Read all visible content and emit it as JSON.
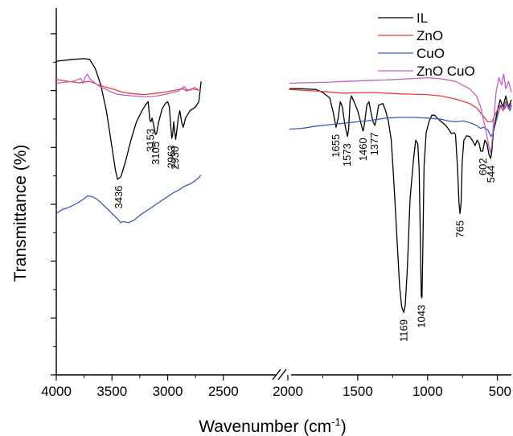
{
  "chart_data": {
    "type": "line",
    "title": "",
    "xlabel": "Wavenumber (cm",
    "xlabel_sup": "-1",
    "xlabel_close": ")",
    "ylabel": "Transmittance (%)",
    "x_axis": {
      "broken": true,
      "left_range": [
        4000,
        2000
      ],
      "right_range": [
        2000,
        400
      ],
      "left_ticks": [
        "4000",
        "3500",
        "3000",
        "2500"
      ],
      "right_ticks": [
        "2000",
        "1500",
        "1000",
        "500"
      ]
    },
    "y_ticks_labeled": false,
    "grid": false,
    "legend_position": "top-right",
    "series": [
      {
        "name": "IL",
        "color": "#000000",
        "left": [
          [
            4000,
            0.855
          ],
          [
            3850,
            0.86
          ],
          [
            3750,
            0.862
          ],
          [
            3700,
            0.86
          ],
          [
            3650,
            0.835
          ],
          [
            3600,
            0.79
          ],
          [
            3550,
            0.72
          ],
          [
            3500,
            0.62
          ],
          [
            3470,
            0.56
          ],
          [
            3450,
            0.533
          ],
          [
            3420,
            0.54
          ],
          [
            3380,
            0.58
          ],
          [
            3330,
            0.64
          ],
          [
            3280,
            0.69
          ],
          [
            3230,
            0.72
          ],
          [
            3200,
            0.735
          ],
          [
            3175,
            0.745
          ],
          [
            3160,
            0.695
          ],
          [
            3150,
            0.69
          ],
          [
            3140,
            0.7
          ],
          [
            3125,
            0.68
          ],
          [
            3110,
            0.655
          ],
          [
            3100,
            0.658
          ],
          [
            3080,
            0.69
          ],
          [
            3050,
            0.725
          ],
          [
            3020,
            0.74
          ],
          [
            3000,
            0.745
          ],
          [
            2985,
            0.73
          ],
          [
            2970,
            0.67
          ],
          [
            2963,
            0.645
          ],
          [
            2955,
            0.655
          ],
          [
            2945,
            0.69
          ],
          [
            2935,
            0.66
          ],
          [
            2928,
            0.642
          ],
          [
            2920,
            0.66
          ],
          [
            2905,
            0.7
          ],
          [
            2890,
            0.72
          ],
          [
            2875,
            0.69
          ],
          [
            2860,
            0.675
          ],
          [
            2840,
            0.7
          ],
          [
            2800,
            0.72
          ],
          [
            2750,
            0.73
          ],
          [
            2720,
            0.745
          ],
          [
            2700,
            0.8
          ]
        ],
        "right": [
          [
            1990,
            0.78
          ],
          [
            1900,
            0.78
          ],
          [
            1800,
            0.778
          ],
          [
            1750,
            0.77
          ],
          [
            1700,
            0.755
          ],
          [
            1675,
            0.715
          ],
          [
            1655,
            0.675
          ],
          [
            1640,
            0.7
          ],
          [
            1625,
            0.745
          ],
          [
            1610,
            0.73
          ],
          [
            1595,
            0.69
          ],
          [
            1580,
            0.66
          ],
          [
            1573,
            0.65
          ],
          [
            1565,
            0.67
          ],
          [
            1555,
            0.745
          ],
          [
            1545,
            0.76
          ],
          [
            1530,
            0.748
          ],
          [
            1500,
            0.72
          ],
          [
            1480,
            0.69
          ],
          [
            1465,
            0.668
          ],
          [
            1460,
            0.665
          ],
          [
            1450,
            0.69
          ],
          [
            1435,
            0.735
          ],
          [
            1420,
            0.745
          ],
          [
            1405,
            0.715
          ],
          [
            1390,
            0.69
          ],
          [
            1377,
            0.68
          ],
          [
            1365,
            0.7
          ],
          [
            1350,
            0.735
          ],
          [
            1320,
            0.74
          ],
          [
            1300,
            0.72
          ],
          [
            1280,
            0.69
          ],
          [
            1260,
            0.64
          ],
          [
            1240,
            0.52
          ],
          [
            1220,
            0.38
          ],
          [
            1200,
            0.24
          ],
          [
            1185,
            0.185
          ],
          [
            1170,
            0.17
          ],
          [
            1160,
            0.19
          ],
          [
            1145,
            0.29
          ],
          [
            1125,
            0.48
          ],
          [
            1100,
            0.59
          ],
          [
            1085,
            0.64
          ],
          [
            1070,
            0.63
          ],
          [
            1060,
            0.56
          ],
          [
            1050,
            0.33
          ],
          [
            1045,
            0.215
          ],
          [
            1040,
            0.21
          ],
          [
            1035,
            0.32
          ],
          [
            1025,
            0.57
          ],
          [
            1010,
            0.66
          ],
          [
            990,
            0.69
          ],
          [
            970,
            0.708
          ],
          [
            950,
            0.708
          ],
          [
            930,
            0.7
          ],
          [
            900,
            0.69
          ],
          [
            870,
            0.68
          ],
          [
            850,
            0.67
          ],
          [
            830,
            0.658
          ],
          [
            810,
            0.66
          ],
          [
            800,
            0.655
          ],
          [
            785,
            0.56
          ],
          [
            775,
            0.47
          ],
          [
            768,
            0.44
          ],
          [
            760,
            0.47
          ],
          [
            752,
            0.58
          ],
          [
            740,
            0.64
          ],
          [
            720,
            0.652
          ],
          [
            700,
            0.65
          ],
          [
            680,
            0.64
          ],
          [
            660,
            0.625
          ],
          [
            645,
            0.64
          ],
          [
            630,
            0.63
          ],
          [
            620,
            0.61
          ],
          [
            605,
            0.61
          ],
          [
            590,
            0.64
          ],
          [
            575,
            0.63
          ],
          [
            560,
            0.6
          ],
          [
            548,
            0.59
          ],
          [
            540,
            0.61
          ],
          [
            530,
            0.66
          ],
          [
            515,
            0.69
          ],
          [
            500,
            0.72
          ],
          [
            480,
            0.75
          ],
          [
            460,
            0.73
          ],
          [
            440,
            0.76
          ],
          [
            420,
            0.73
          ],
          [
            400,
            0.75
          ]
        ]
      },
      {
        "name": "ZnO",
        "color": "#e83a3a",
        "left": [
          [
            4000,
            0.805
          ],
          [
            3800,
            0.796
          ],
          [
            3700,
            0.8
          ],
          [
            3600,
            0.788
          ],
          [
            3500,
            0.78
          ],
          [
            3400,
            0.77
          ],
          [
            3300,
            0.766
          ],
          [
            3200,
            0.764
          ],
          [
            3100,
            0.768
          ],
          [
            3000,
            0.772
          ],
          [
            2900,
            0.778
          ],
          [
            2860,
            0.78
          ],
          [
            2830,
            0.774
          ],
          [
            2780,
            0.78
          ],
          [
            2750,
            0.778
          ],
          [
            2720,
            0.776
          ],
          [
            2700,
            0.778
          ]
        ],
        "right": [
          [
            1990,
            0.778
          ],
          [
            1800,
            0.774
          ],
          [
            1600,
            0.768
          ],
          [
            1400,
            0.77
          ],
          [
            1200,
            0.766
          ],
          [
            1000,
            0.764
          ],
          [
            900,
            0.76
          ],
          [
            800,
            0.752
          ],
          [
            700,
            0.74
          ],
          [
            650,
            0.728
          ],
          [
            600,
            0.705
          ],
          [
            570,
            0.69
          ],
          [
            540,
            0.69
          ],
          [
            510,
            0.715
          ],
          [
            480,
            0.735
          ],
          [
            460,
            0.72
          ],
          [
            440,
            0.745
          ],
          [
            420,
            0.725
          ],
          [
            400,
            0.74
          ]
        ]
      },
      {
        "name": "CuO",
        "color": "#3a58c8",
        "left": [
          [
            4000,
            0.44
          ],
          [
            3950,
            0.45
          ],
          [
            3900,
            0.455
          ],
          [
            3850,
            0.462
          ],
          [
            3800,
            0.47
          ],
          [
            3750,
            0.48
          ],
          [
            3720,
            0.488
          ],
          [
            3680,
            0.486
          ],
          [
            3640,
            0.48
          ],
          [
            3600,
            0.47
          ],
          [
            3550,
            0.455
          ],
          [
            3500,
            0.44
          ],
          [
            3450,
            0.425
          ],
          [
            3420,
            0.415
          ],
          [
            3400,
            0.418
          ],
          [
            3350,
            0.415
          ],
          [
            3300,
            0.422
          ],
          [
            3250,
            0.435
          ],
          [
            3200,
            0.445
          ],
          [
            3150,
            0.455
          ],
          [
            3100,
            0.466
          ],
          [
            3050,
            0.476
          ],
          [
            3000,
            0.486
          ],
          [
            2950,
            0.496
          ],
          [
            2900,
            0.504
          ],
          [
            2850,
            0.514
          ],
          [
            2800,
            0.52
          ],
          [
            2750,
            0.53
          ],
          [
            2720,
            0.538
          ],
          [
            2700,
            0.545
          ]
        ],
        "right": [
          [
            1990,
            0.67
          ],
          [
            1900,
            0.672
          ],
          [
            1800,
            0.678
          ],
          [
            1700,
            0.682
          ],
          [
            1600,
            0.686
          ],
          [
            1500,
            0.69
          ],
          [
            1400,
            0.694
          ],
          [
            1300,
            0.7
          ],
          [
            1200,
            0.702
          ],
          [
            1100,
            0.702
          ],
          [
            1000,
            0.7
          ],
          [
            900,
            0.697
          ],
          [
            850,
            0.692
          ],
          [
            800,
            0.69
          ],
          [
            750,
            0.692
          ],
          [
            700,
            0.688
          ],
          [
            650,
            0.68
          ],
          [
            620,
            0.672
          ],
          [
            600,
            0.675
          ],
          [
            570,
            0.668
          ],
          [
            545,
            0.65
          ],
          [
            530,
            0.66
          ],
          [
            510,
            0.69
          ],
          [
            490,
            0.72
          ],
          [
            470,
            0.735
          ],
          [
            450,
            0.725
          ],
          [
            430,
            0.74
          ],
          [
            410,
            0.72
          ],
          [
            400,
            0.735
          ]
        ]
      },
      {
        "name": "ZnO CuO",
        "color": "#c060c0",
        "left": [
          [
            4000,
            0.795
          ],
          [
            3850,
            0.8
          ],
          [
            3780,
            0.808
          ],
          [
            3760,
            0.795
          ],
          [
            3740,
            0.812
          ],
          [
            3720,
            0.82
          ],
          [
            3700,
            0.808
          ],
          [
            3650,
            0.795
          ],
          [
            3600,
            0.784
          ],
          [
            3550,
            0.778
          ],
          [
            3500,
            0.77
          ],
          [
            3450,
            0.765
          ],
          [
            3400,
            0.763
          ],
          [
            3300,
            0.76
          ],
          [
            3200,
            0.758
          ],
          [
            3100,
            0.76
          ],
          [
            3000,
            0.766
          ],
          [
            2900,
            0.774
          ],
          [
            2870,
            0.782
          ],
          [
            2850,
            0.786
          ],
          [
            2830,
            0.778
          ],
          [
            2790,
            0.776
          ],
          [
            2760,
            0.784
          ],
          [
            2730,
            0.778
          ],
          [
            2700,
            0.772
          ]
        ],
        "right": [
          [
            1990,
            0.795
          ],
          [
            1900,
            0.796
          ],
          [
            1800,
            0.797
          ],
          [
            1700,
            0.798
          ],
          [
            1600,
            0.8
          ],
          [
            1500,
            0.801
          ],
          [
            1400,
            0.803
          ],
          [
            1300,
            0.804
          ],
          [
            1200,
            0.806
          ],
          [
            1100,
            0.808
          ],
          [
            1000,
            0.81
          ],
          [
            900,
            0.807
          ],
          [
            800,
            0.8
          ],
          [
            700,
            0.78
          ],
          [
            650,
            0.76
          ],
          [
            620,
            0.73
          ],
          [
            600,
            0.695
          ],
          [
            585,
            0.67
          ],
          [
            570,
            0.64
          ],
          [
            560,
            0.62
          ],
          [
            548,
            0.605
          ],
          [
            540,
            0.63
          ],
          [
            525,
            0.7
          ],
          [
            510,
            0.77
          ],
          [
            490,
            0.81
          ],
          [
            470,
            0.79
          ],
          [
            455,
            0.82
          ],
          [
            440,
            0.78
          ],
          [
            420,
            0.8
          ],
          [
            400,
            0.77
          ]
        ]
      }
    ],
    "annotations": [
      {
        "text": "3436",
        "segment": "left",
        "x": 3436,
        "y": 0.525
      },
      {
        "text": "3153",
        "segment": "left",
        "x": 3153,
        "y": 0.68
      },
      {
        "text": "3105",
        "segment": "left",
        "x": 3105,
        "y": 0.645
      },
      {
        "text": "2963",
        "segment": "left",
        "x": 2963,
        "y": 0.635
      },
      {
        "text": "2930",
        "segment": "left",
        "x": 2930,
        "y": 0.632
      },
      {
        "text": "1655",
        "segment": "right",
        "x": 1655,
        "y": 0.665
      },
      {
        "text": "1573",
        "segment": "right",
        "x": 1573,
        "y": 0.64
      },
      {
        "text": "1460",
        "segment": "right",
        "x": 1460,
        "y": 0.655
      },
      {
        "text": "1377",
        "segment": "right",
        "x": 1377,
        "y": 0.67
      },
      {
        "text": "1169",
        "segment": "right",
        "x": 1169,
        "y": 0.16
      },
      {
        "text": "1043",
        "segment": "right",
        "x": 1043,
        "y": 0.2
      },
      {
        "text": "765",
        "segment": "right",
        "x": 765,
        "y": 0.43
      },
      {
        "text": "602",
        "segment": "right",
        "x": 602,
        "y": 0.6
      },
      {
        "text": "544",
        "segment": "right",
        "x": 544,
        "y": 0.58
      }
    ]
  }
}
